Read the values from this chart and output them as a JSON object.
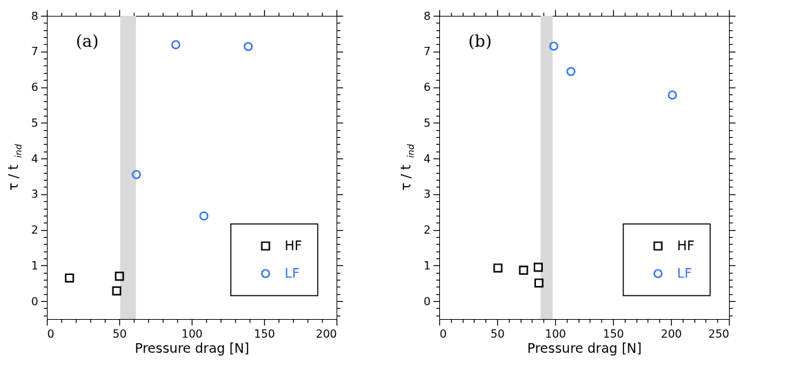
{
  "chart_data": [
    {
      "type": "scatter",
      "xlabel": "Pressure drag [N]",
      "ylabel": "τ / t$_{ind}$",
      "annotations": [
        "(a)"
      ],
      "legend": "bottom right",
      "xlim": [
        0,
        200
      ],
      "ylim": [
        -0.5,
        8
      ],
      "xticks": [
        0,
        {
          "value": 10,
          "label": null
        },
        {
          "value": 20,
          "label": null
        },
        {
          "value": 30,
          "label": null
        },
        {
          "value": 40,
          "label": null
        },
        50,
        {
          "value": 60,
          "label": null
        },
        {
          "value": 70,
          "label": null
        },
        {
          "value": 80,
          "label": null
        },
        {
          "value": 90,
          "label": null
        },
        100,
        {
          "value": 110,
          "label": null
        },
        {
          "value": 120,
          "label": null
        },
        {
          "value": 130,
          "label": null
        },
        {
          "value": 140,
          "label": null
        },
        150,
        {
          "value": 160,
          "label": null
        },
        {
          "value": 170,
          "label": null
        },
        {
          "value": 180,
          "label": null
        },
        {
          "value": 190,
          "label": null
        },
        200
      ],
      "yticks": [
        {
          "value": -0.4,
          "label": null
        },
        {
          "value": -0.2,
          "label": null
        },
        0,
        {
          "value": 0.2,
          "label": null
        },
        {
          "value": 0.4,
          "label": null
        },
        {
          "value": 0.6,
          "label": null
        },
        {
          "value": 0.8,
          "label": null
        },
        1,
        {
          "value": 1.2,
          "label": null
        },
        {
          "value": 1.4,
          "label": null
        },
        {
          "value": 1.6,
          "label": null
        },
        {
          "value": 1.8,
          "label": null
        },
        2,
        {
          "value": 2.2,
          "label": null
        },
        {
          "value": 2.4,
          "label": null
        },
        {
          "value": 2.6,
          "label": null
        },
        {
          "value": 2.8,
          "label": null
        },
        3,
        {
          "value": 3.2,
          "label": null
        },
        {
          "value": 3.4,
          "label": null
        },
        {
          "value": 3.6,
          "label": null
        },
        {
          "value": 3.8,
          "label": null
        },
        4,
        {
          "value": 4.2,
          "label": null
        },
        {
          "value": 4.4,
          "label": null
        },
        {
          "value": 4.6,
          "label": null
        },
        {
          "value": 4.8,
          "label": null
        },
        5,
        {
          "value": 5.2,
          "label": null
        },
        {
          "value": 5.4,
          "label": null
        },
        {
          "value": 5.6,
          "label": null
        },
        {
          "value": 5.8,
          "label": null
        },
        6,
        {
          "value": 6.2,
          "label": null
        },
        {
          "value": 6.4,
          "label": null
        },
        {
          "value": 6.6,
          "label": null
        },
        {
          "value": 6.8,
          "label": null
        },
        7,
        {
          "value": 7.2,
          "label": null
        },
        {
          "value": 7.4,
          "label": null
        },
        {
          "value": 7.6,
          "label": null
        },
        {
          "value": 7.8,
          "label": null
        },
        8
      ],
      "bands": [
        {
          "axis": "x",
          "from": 50.6,
          "to": 61.5,
          "color": "#d9d9d9"
        }
      ],
      "series": [
        {
          "name": "HF",
          "color": "#000000",
          "marker": "square",
          "x": [
            15.6,
            48.2,
            50.1
          ],
          "values": [
            0.65,
            0.29,
            0.7
          ]
        },
        {
          "name": "LF",
          "color": "#2f73ff",
          "marker": "circle",
          "x": [
            61.8,
            89,
            108.4,
            139
          ],
          "values": [
            3.55,
            7.19,
            2.39,
            7.14
          ]
        }
      ]
    },
    {
      "type": "scatter",
      "xlabel": "Pressure drag [N]",
      "ylabel": "τ / t$_{ind}$",
      "annotations": [
        "(b)"
      ],
      "legend": "bottom right",
      "xlim": [
        0,
        250
      ],
      "ylim": [
        -0.5,
        8
      ],
      "xticks": [
        0,
        {
          "value": 10,
          "label": null
        },
        {
          "value": 20,
          "label": null
        },
        {
          "value": 30,
          "label": null
        },
        {
          "value": 40,
          "label": null
        },
        50,
        {
          "value": 60,
          "label": null
        },
        {
          "value": 70,
          "label": null
        },
        {
          "value": 80,
          "label": null
        },
        {
          "value": 90,
          "label": null
        },
        100,
        {
          "value": 110,
          "label": null
        },
        {
          "value": 120,
          "label": null
        },
        {
          "value": 130,
          "label": null
        },
        {
          "value": 140,
          "label": null
        },
        150,
        {
          "value": 160,
          "label": null
        },
        {
          "value": 170,
          "label": null
        },
        {
          "value": 180,
          "label": null
        },
        {
          "value": 190,
          "label": null
        },
        200,
        {
          "value": 210,
          "label": null
        },
        {
          "value": 220,
          "label": null
        },
        {
          "value": 230,
          "label": null
        },
        {
          "value": 240,
          "label": null
        },
        250
      ],
      "yticks": [
        {
          "value": -0.4,
          "label": null
        },
        {
          "value": -0.2,
          "label": null
        },
        0,
        {
          "value": 0.2,
          "label": null
        },
        {
          "value": 0.4,
          "label": null
        },
        {
          "value": 0.6,
          "label": null
        },
        {
          "value": 0.8,
          "label": null
        },
        1,
        {
          "value": 1.2,
          "label": null
        },
        {
          "value": 1.4,
          "label": null
        },
        {
          "value": 1.6,
          "label": null
        },
        {
          "value": 1.8,
          "label": null
        },
        2,
        {
          "value": 2.2,
          "label": null
        },
        {
          "value": 2.4,
          "label": null
        },
        {
          "value": 2.6,
          "label": null
        },
        {
          "value": 2.8,
          "label": null
        },
        3,
        {
          "value": 3.2,
          "label": null
        },
        {
          "value": 3.4,
          "label": null
        },
        {
          "value": 3.6,
          "label": null
        },
        {
          "value": 3.8,
          "label": null
        },
        4,
        {
          "value": 4.2,
          "label": null
        },
        {
          "value": 4.4,
          "label": null
        },
        {
          "value": 4.6,
          "label": null
        },
        {
          "value": 4.8,
          "label": null
        },
        5,
        {
          "value": 5.2,
          "label": null
        },
        {
          "value": 5.4,
          "label": null
        },
        {
          "value": 5.6,
          "label": null
        },
        {
          "value": 5.8,
          "label": null
        },
        6,
        {
          "value": 6.2,
          "label": null
        },
        {
          "value": 6.4,
          "label": null
        },
        {
          "value": 6.6,
          "label": null
        },
        {
          "value": 6.8,
          "label": null
        },
        7,
        {
          "value": 7.2,
          "label": null
        },
        {
          "value": 7.4,
          "label": null
        },
        {
          "value": 7.6,
          "label": null
        },
        {
          "value": 7.8,
          "label": null
        },
        8
      ],
      "bands": [
        {
          "axis": "x",
          "from": 87.4,
          "to": 97.8,
          "color": "#d9d9d9"
        }
      ],
      "series": [
        {
          "name": "HF",
          "color": "#000000",
          "marker": "square",
          "x": [
            50.6,
            72.7,
            85.4,
            86
          ],
          "values": [
            0.93,
            0.87,
            0.95,
            0.51
          ]
        },
        {
          "name": "LF",
          "color": "#2f73ff",
          "marker": "circle",
          "x": [
            98.8,
            113.6,
            201.2
          ],
          "values": [
            7.15,
            6.44,
            5.78
          ]
        }
      ]
    }
  ]
}
